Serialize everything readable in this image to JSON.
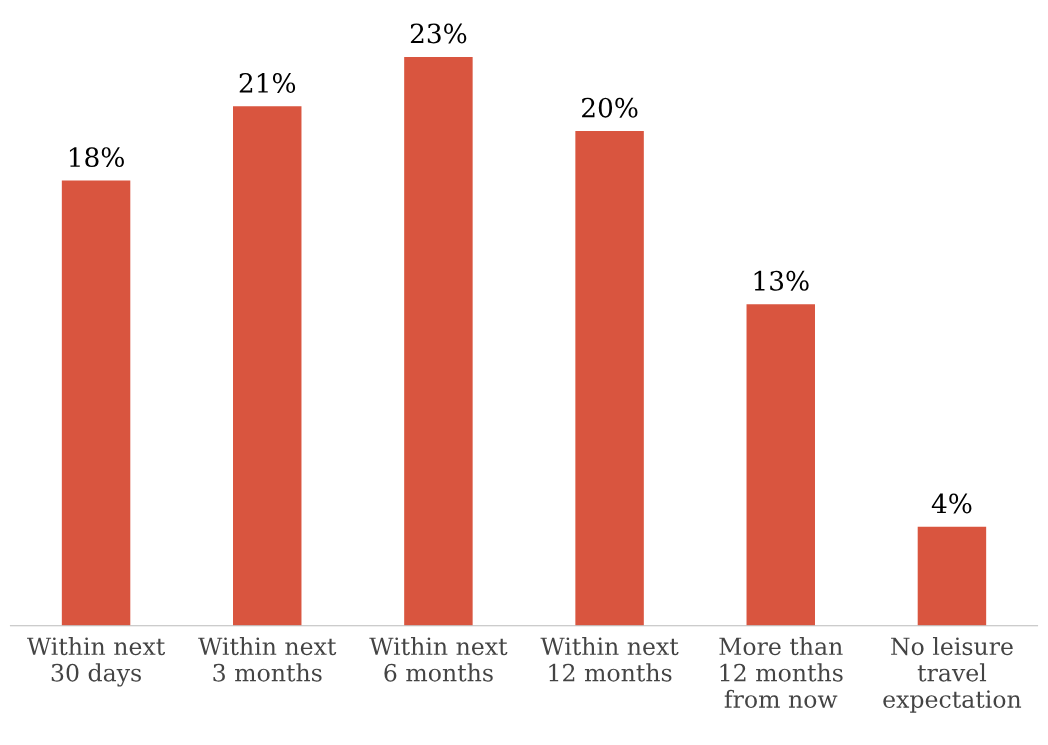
{
  "chart_data": {
    "type": "bar",
    "categories": [
      "Within next\n30 days",
      "Within next\n3 months",
      "Within next\n6 months",
      "Within next\n12 months",
      "More than\n12 months\nfrom now",
      "No leisure\ntravel\nexpectation"
    ],
    "values": [
      18,
      21,
      23,
      20,
      13,
      4
    ],
    "value_labels": [
      "18%",
      "21%",
      "23%",
      "20%",
      "13%",
      "4%"
    ],
    "color": "#d9553f",
    "grid": false,
    "legend": false
  }
}
